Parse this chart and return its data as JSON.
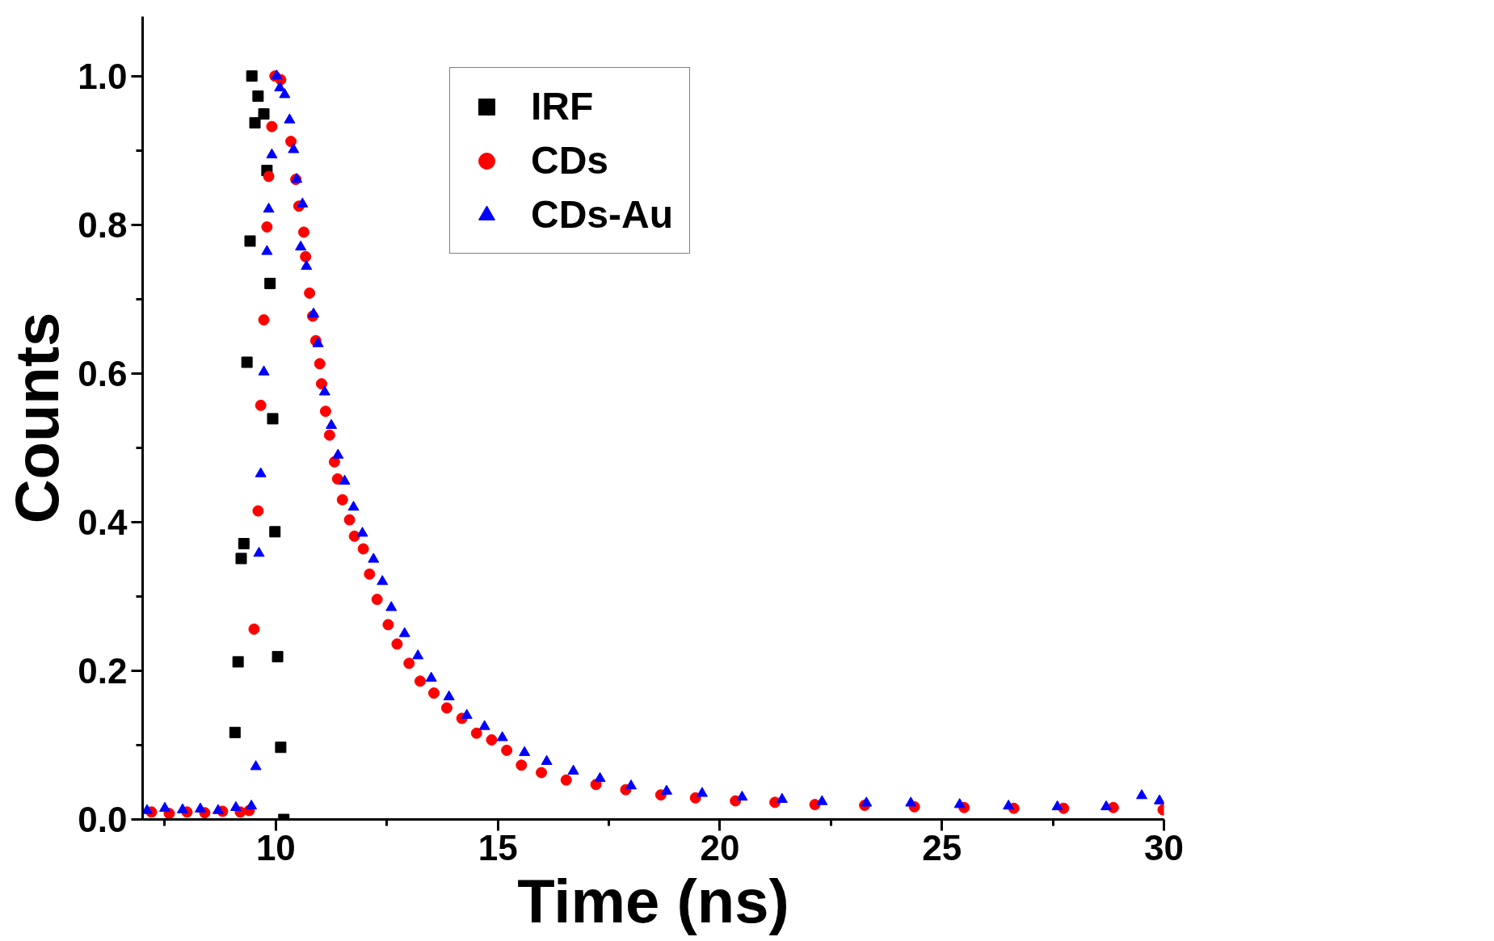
{
  "chart_data": {
    "type": "scatter",
    "xlabel": "Time (ns)",
    "ylabel": "Counts",
    "xlim": [
      7,
      30
    ],
    "xticks": [
      10,
      15,
      20,
      25,
      30
    ],
    "ylim": [
      0,
      1.08
    ],
    "yticks": [
      {
        "value": 0,
        "label": "0.0"
      },
      {
        "value": 0.2,
        "label": "0.2"
      },
      {
        "value": 0.4,
        "label": "0.4"
      },
      {
        "value": 0.6,
        "label": "0.6"
      },
      {
        "value": 0.8,
        "label": "0.8"
      },
      {
        "value": 1,
        "label": "1.0"
      }
    ],
    "legend": "top",
    "grid": false,
    "series": [
      {
        "name": "IRF",
        "color": "#000000",
        "marker": "square",
        "x": [
          9.08,
          9.15,
          9.22,
          9.28,
          9.35,
          9.42,
          9.46,
          9.53,
          9.6,
          9.73,
          9.8,
          9.87,
          9.93,
          9.98,
          10.04,
          10.11,
          10.18
        ],
        "values": [
          0.117,
          0.212,
          0.351,
          0.371,
          0.615,
          0.778,
          1.0,
          0.937,
          0.973,
          0.949,
          0.873,
          0.721,
          0.539,
          0.387,
          0.219,
          0.097,
          0.0
        ]
      },
      {
        "name": "CDs",
        "color": "#ff0000",
        "marker": "circle",
        "x": [
          7.2,
          7.6,
          8.0,
          8.4,
          8.8,
          9.2,
          9.4,
          9.51,
          9.6,
          9.66,
          9.73,
          9.8,
          9.84,
          9.91,
          9.98,
          10.11,
          10.34,
          10.45,
          10.52,
          10.63,
          10.67,
          10.76,
          10.83,
          10.9,
          10.99,
          11.03,
          11.12,
          11.21,
          11.32,
          11.39,
          11.5,
          11.66,
          11.77,
          11.97,
          12.11,
          12.28,
          12.53,
          12.73,
          13.0,
          13.25,
          13.56,
          13.85,
          14.19,
          14.52,
          14.86,
          15.2,
          15.53,
          15.98,
          16.54,
          17.21,
          17.88,
          18.67,
          19.45,
          20.35,
          21.24,
          22.14,
          23.26,
          24.38,
          25.5,
          26.62,
          27.74,
          28.86,
          29.98
        ],
        "values": [
          0.01,
          0.008,
          0.01,
          0.009,
          0.011,
          0.01,
          0.012,
          0.256,
          0.415,
          0.557,
          0.672,
          0.797,
          0.865,
          0.932,
          1.0,
          0.995,
          0.912,
          0.861,
          0.825,
          0.79,
          0.757,
          0.708,
          0.677,
          0.644,
          0.613,
          0.586,
          0.549,
          0.517,
          0.481,
          0.458,
          0.43,
          0.403,
          0.381,
          0.364,
          0.33,
          0.296,
          0.262,
          0.236,
          0.21,
          0.186,
          0.17,
          0.15,
          0.136,
          0.116,
          0.107,
          0.093,
          0.073,
          0.063,
          0.053,
          0.047,
          0.04,
          0.033,
          0.029,
          0.025,
          0.023,
          0.02,
          0.019,
          0.017,
          0.016,
          0.015,
          0.015,
          0.016,
          0.013
        ]
      },
      {
        "name": "CDs-Au",
        "color": "#0000ff",
        "marker": "triangle",
        "x": [
          7.1,
          7.5,
          7.9,
          8.3,
          8.7,
          9.1,
          9.45,
          9.55,
          9.62,
          9.66,
          9.73,
          9.8,
          9.84,
          9.91,
          10.02,
          10.09,
          10.2,
          10.31,
          10.4,
          10.47,
          10.56,
          10.6,
          10.69,
          10.85,
          10.95,
          11.1,
          11.25,
          11.4,
          11.55,
          11.75,
          11.95,
          12.2,
          12.4,
          12.6,
          12.9,
          13.2,
          13.5,
          13.9,
          14.3,
          14.7,
          15.1,
          15.6,
          16.1,
          16.7,
          17.3,
          18.0,
          18.8,
          19.6,
          20.5,
          21.4,
          22.3,
          23.3,
          24.3,
          25.4,
          26.5,
          27.6,
          28.7,
          29.5,
          29.9
        ],
        "values": [
          0.012,
          0.015,
          0.013,
          0.014,
          0.012,
          0.016,
          0.018,
          0.071,
          0.358,
          0.465,
          0.602,
          0.764,
          0.821,
          0.894,
          1.0,
          0.984,
          0.975,
          0.941,
          0.901,
          0.861,
          0.77,
          0.828,
          0.744,
          0.68,
          0.64,
          0.575,
          0.53,
          0.49,
          0.455,
          0.42,
          0.385,
          0.35,
          0.32,
          0.285,
          0.25,
          0.22,
          0.19,
          0.165,
          0.14,
          0.125,
          0.11,
          0.09,
          0.078,
          0.065,
          0.055,
          0.045,
          0.038,
          0.035,
          0.03,
          0.027,
          0.024,
          0.022,
          0.022,
          0.02,
          0.018,
          0.017,
          0.017,
          0.032,
          0.025
        ]
      }
    ]
  }
}
